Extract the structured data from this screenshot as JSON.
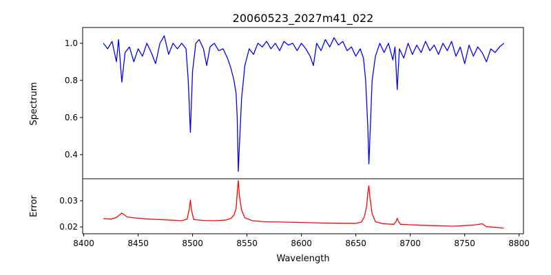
{
  "chart_data": [
    {
      "type": "line",
      "title": "20060523_2027m41_022",
      "xlabel": "",
      "ylabel": "Spectrum",
      "xlim": [
        8399,
        8804
      ],
      "ylim": [
        0.27,
        1.085
      ],
      "yticks": [
        0.4,
        0.6,
        0.8,
        1.0
      ],
      "ytick_labels": [
        "0.4",
        "0.6",
        "0.8",
        "1.0"
      ],
      "color": "#0000ff",
      "x": [
        8418,
        8422,
        8426,
        8430,
        8432,
        8435,
        8438,
        8442,
        8446,
        8450,
        8454,
        8458,
        8462,
        8466,
        8470,
        8474,
        8478,
        8482,
        8486,
        8490,
        8494,
        8496,
        8498,
        8500,
        8503,
        8506,
        8510,
        8513,
        8516,
        8520,
        8524,
        8528,
        8532,
        8535,
        8538,
        8540,
        8541,
        8542,
        8543,
        8545,
        8548,
        8552,
        8556,
        8560,
        8564,
        8568,
        8572,
        8576,
        8580,
        8584,
        8588,
        8592,
        8596,
        8600,
        8604,
        8608,
        8611,
        8614,
        8618,
        8622,
        8626,
        8630,
        8634,
        8638,
        8642,
        8646,
        8650,
        8654,
        8657,
        8659,
        8661,
        8662,
        8663,
        8665,
        8668,
        8672,
        8676,
        8680,
        8684,
        8686,
        8688,
        8690,
        8694,
        8698,
        8702,
        8706,
        8710,
        8714,
        8718,
        8722,
        8726,
        8730,
        8734,
        8738,
        8742,
        8746,
        8750,
        8754,
        8758,
        8762,
        8766,
        8770,
        8774,
        8778,
        8782,
        8786
      ],
      "y": [
        1.0,
        0.97,
        1.01,
        0.9,
        1.02,
        0.79,
        0.95,
        0.98,
        0.9,
        0.97,
        0.93,
        1.0,
        0.95,
        0.89,
        1.0,
        1.04,
        0.94,
        1.0,
        0.97,
        1.0,
        0.97,
        0.8,
        0.52,
        0.85,
        1.0,
        1.02,
        0.97,
        0.88,
        0.98,
        1.0,
        0.96,
        0.97,
        0.92,
        0.87,
        0.8,
        0.73,
        0.6,
        0.31,
        0.45,
        0.7,
        0.88,
        0.97,
        0.94,
        1.0,
        0.98,
        1.01,
        0.97,
        1.0,
        0.96,
        1.01,
        0.99,
        1.0,
        0.96,
        1.0,
        0.97,
        0.93,
        0.88,
        1.0,
        0.96,
        1.02,
        0.98,
        1.03,
        0.99,
        1.01,
        0.96,
        0.98,
        0.93,
        0.97,
        0.92,
        0.8,
        0.55,
        0.35,
        0.5,
        0.8,
        0.93,
        1.0,
        0.95,
        1.0,
        0.91,
        0.98,
        0.75,
        0.97,
        0.92,
        1.0,
        0.94,
        0.99,
        0.95,
        1.01,
        0.96,
        0.99,
        0.94,
        1.0,
        0.96,
        1.01,
        0.93,
        0.98,
        0.89,
        0.99,
        0.93,
        0.98,
        0.95,
        0.9,
        0.97,
        0.95,
        0.98,
        1.0
      ]
    },
    {
      "type": "line",
      "xlabel": "Wavelength",
      "ylabel": "Error",
      "xlim": [
        8399,
        8804
      ],
      "ylim": [
        0.0174,
        0.0384
      ],
      "xticks": [
        8400,
        8450,
        8500,
        8550,
        8600,
        8650,
        8700,
        8750,
        8800
      ],
      "xtick_labels": [
        "8400",
        "8450",
        "8500",
        "8550",
        "8600",
        "8650",
        "8700",
        "8750",
        "8800"
      ],
      "yticks": [
        0.02,
        0.03
      ],
      "ytick_labels": [
        "0.02",
        "0.03"
      ],
      "color": "#ff0000",
      "x": [
        8418,
        8425,
        8430,
        8435,
        8440,
        8450,
        8460,
        8470,
        8480,
        8490,
        8495,
        8497,
        8498,
        8499,
        8501,
        8510,
        8520,
        8530,
        8535,
        8538,
        8540,
        8541,
        8542,
        8543,
        8545,
        8548,
        8555,
        8565,
        8580,
        8600,
        8620,
        8640,
        8650,
        8655,
        8658,
        8660,
        8661,
        8662,
        8663,
        8665,
        8668,
        8675,
        8685,
        8687,
        8688,
        8689,
        8691,
        8700,
        8720,
        8740,
        8750,
        8760,
        8766,
        8770,
        8780,
        8786
      ],
      "y": [
        0.0232,
        0.023,
        0.0236,
        0.0253,
        0.0238,
        0.0233,
        0.023,
        0.0228,
        0.0226,
        0.0224,
        0.023,
        0.027,
        0.0302,
        0.0265,
        0.0228,
        0.0225,
        0.0224,
        0.0226,
        0.0232,
        0.0245,
        0.027,
        0.033,
        0.0377,
        0.032,
        0.0265,
        0.0235,
        0.0224,
        0.022,
        0.0219,
        0.0217,
        0.0215,
        0.0214,
        0.0214,
        0.0218,
        0.024,
        0.028,
        0.033,
        0.0357,
        0.031,
        0.025,
        0.022,
        0.0212,
        0.021,
        0.0222,
        0.0233,
        0.0222,
        0.021,
        0.0208,
        0.0205,
        0.0203,
        0.0205,
        0.0208,
        0.0212,
        0.0201,
        0.0198,
        0.0195
      ]
    }
  ]
}
